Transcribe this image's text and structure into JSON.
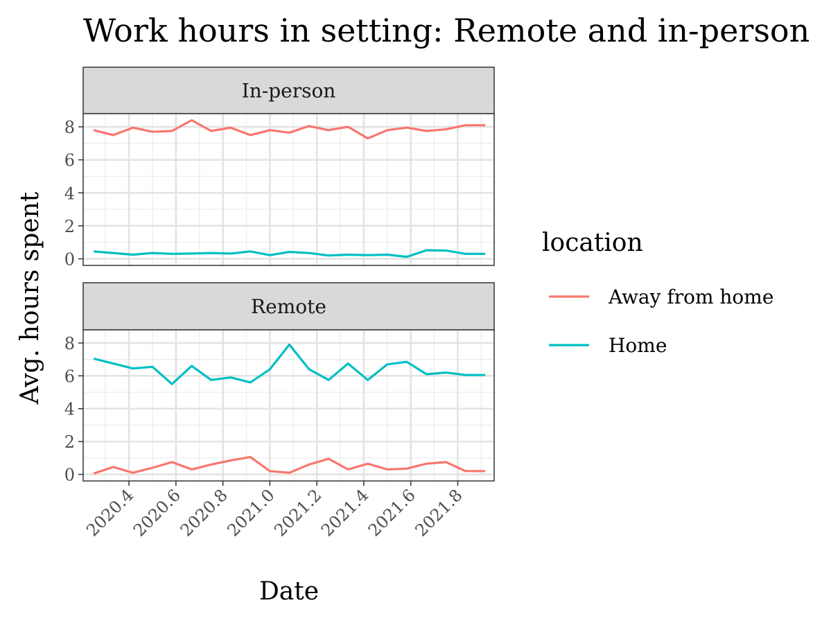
{
  "chart_data": {
    "type": "line",
    "title": "Work hours in setting: Remote and in-person",
    "xlabel": "Date",
    "ylabel": "Avg. hours spent",
    "xlim": [
      2020.205,
      2021.955
    ],
    "ylim": [
      -0.4,
      8.8
    ],
    "x_ticks": [
      2020.4,
      2020.6,
      2020.8,
      2021.0,
      2021.2,
      2021.4,
      2021.6,
      2021.8
    ],
    "x_tick_labels": [
      "2020.4",
      "2020.6",
      "2020.8",
      "2021.0",
      "2021.2",
      "2021.4",
      "2021.6",
      "2021.8"
    ],
    "y_ticks": [
      0,
      2,
      4,
      6,
      8
    ],
    "y_tick_labels": [
      "0",
      "2",
      "4",
      "6",
      "8"
    ],
    "grid": true,
    "legend": {
      "title": "location",
      "placement": "right",
      "entries": [
        {
          "label": "Away from home",
          "color": "#F8766D"
        },
        {
          "label": "Home",
          "color": "#00BFC4"
        }
      ]
    },
    "x": [
      2020.25,
      2020.333,
      2020.417,
      2020.5,
      2020.583,
      2020.667,
      2020.75,
      2020.833,
      2020.917,
      2021.0,
      2021.083,
      2021.167,
      2021.25,
      2021.333,
      2021.417,
      2021.5,
      2021.583,
      2021.667,
      2021.75,
      2021.833,
      2021.917
    ],
    "panels": [
      {
        "name": "In-person",
        "series": [
          {
            "name": "Away from home",
            "color": "#F8766D",
            "values": [
              7.8,
              7.5,
              7.95,
              7.7,
              7.75,
              8.4,
              7.75,
              7.95,
              7.5,
              7.8,
              7.65,
              8.05,
              7.8,
              8.0,
              7.3,
              7.8,
              7.95,
              7.75,
              7.85,
              8.1,
              8.1
            ]
          },
          {
            "name": "Home",
            "color": "#00BFC4",
            "values": [
              0.45,
              0.35,
              0.25,
              0.35,
              0.3,
              0.32,
              0.35,
              0.32,
              0.45,
              0.22,
              0.42,
              0.35,
              0.2,
              0.25,
              0.22,
              0.25,
              0.12,
              0.52,
              0.5,
              0.3,
              0.3
            ]
          }
        ]
      },
      {
        "name": "Remote",
        "series": [
          {
            "name": "Away from home",
            "color": "#F8766D",
            "values": [
              0.05,
              0.45,
              0.1,
              0.4,
              0.75,
              0.3,
              0.6,
              0.85,
              1.05,
              0.2,
              0.1,
              0.6,
              0.95,
              0.3,
              0.65,
              0.3,
              0.35,
              0.65,
              0.75,
              0.2,
              0.2
            ]
          },
          {
            "name": "Home",
            "color": "#00BFC4",
            "values": [
              7.05,
              6.75,
              6.45,
              6.55,
              5.5,
              6.6,
              5.75,
              5.9,
              5.6,
              6.4,
              7.9,
              6.4,
              5.75,
              6.75,
              5.75,
              6.7,
              6.85,
              6.1,
              6.2,
              6.05,
              6.05
            ]
          }
        ]
      }
    ]
  }
}
